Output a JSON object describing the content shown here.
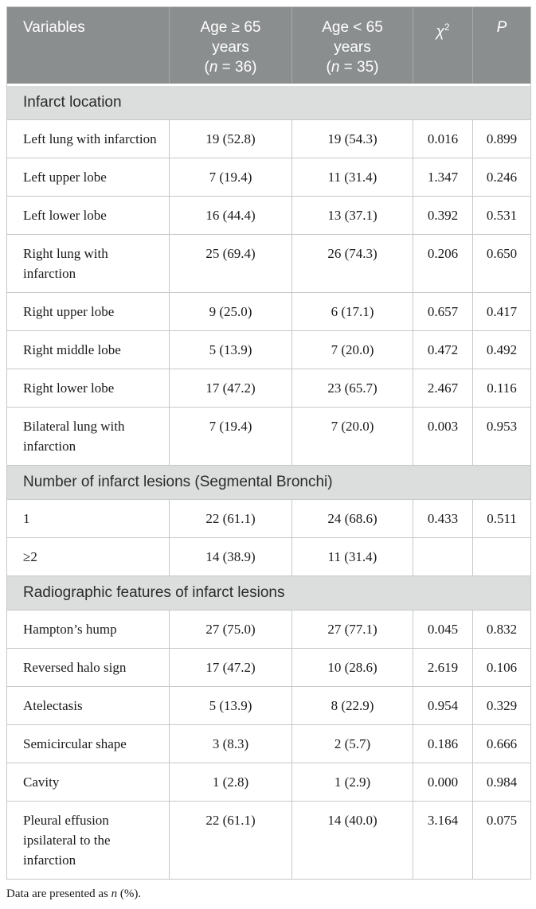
{
  "table": {
    "colors": {
      "header_bg": "#8b8e8f",
      "header_text": "#ffffff",
      "header_separator": "#a6a9aa",
      "section_bg": "#dcdddd",
      "border": "#c6c8c9",
      "body_text": "#1a1a1a"
    },
    "header": {
      "variables": "Variables",
      "group1_lines": [
        "Age ≥ 65",
        "years",
        "(*n* = 36)"
      ],
      "group2_lines": [
        "Age < 65",
        "years",
        "(*n* = 35)"
      ],
      "chi_square": "*χ*^2^",
      "p": "*P*"
    },
    "rows": [
      {
        "type": "section",
        "label": "Infarct location"
      },
      {
        "type": "data",
        "variable": "Left lung with infarction",
        "age_ge_65": "19 (52.8)",
        "age_lt_65": "19 (54.3)",
        "chi_square": "0.016",
        "p_value": "0.899"
      },
      {
        "type": "data",
        "variable": "Left upper lobe",
        "age_ge_65": "7 (19.4)",
        "age_lt_65": "11 (31.4)",
        "chi_square": "1.347",
        "p_value": "0.246"
      },
      {
        "type": "data",
        "variable": "Left lower lobe",
        "age_ge_65": "16 (44.4)",
        "age_lt_65": "13 (37.1)",
        "chi_square": "0.392",
        "p_value": "0.531"
      },
      {
        "type": "data",
        "variable": "Right lung with infarction",
        "age_ge_65": "25 (69.4)",
        "age_lt_65": "26 (74.3)",
        "chi_square": "0.206",
        "p_value": "0.650"
      },
      {
        "type": "data",
        "variable": "Right upper lobe",
        "age_ge_65": "9 (25.0)",
        "age_lt_65": "6 (17.1)",
        "chi_square": "0.657",
        "p_value": "0.417"
      },
      {
        "type": "data",
        "variable": "Right middle lobe",
        "age_ge_65": "5 (13.9)",
        "age_lt_65": "7 (20.0)",
        "chi_square": "0.472",
        "p_value": "0.492"
      },
      {
        "type": "data",
        "variable": "Right lower lobe",
        "age_ge_65": "17 (47.2)",
        "age_lt_65": "23 (65.7)",
        "chi_square": "2.467",
        "p_value": "0.116"
      },
      {
        "type": "data",
        "variable": "Bilateral lung with infarction",
        "age_ge_65": "7 (19.4)",
        "age_lt_65": "7 (20.0)",
        "chi_square": "0.003",
        "p_value": "0.953"
      },
      {
        "type": "section",
        "label": "Number of infarct lesions (Segmental Bronchi)"
      },
      {
        "type": "data",
        "variable": "1",
        "age_ge_65": "22 (61.1)",
        "age_lt_65": "24 (68.6)",
        "chi_square": "0.433",
        "p_value": "0.511"
      },
      {
        "type": "data",
        "variable": "≥2",
        "age_ge_65": "14 (38.9)",
        "age_lt_65": "11 (31.4)",
        "chi_square": "",
        "p_value": ""
      },
      {
        "type": "section",
        "label": "Radiographic features of infarct lesions"
      },
      {
        "type": "data",
        "variable": "Hampton’s hump",
        "age_ge_65": "27 (75.0)",
        "age_lt_65": "27 (77.1)",
        "chi_square": "0.045",
        "p_value": "0.832"
      },
      {
        "type": "data",
        "variable": "Reversed halo sign",
        "age_ge_65": "17 (47.2)",
        "age_lt_65": "10 (28.6)",
        "chi_square": "2.619",
        "p_value": "0.106"
      },
      {
        "type": "data",
        "variable": "Atelectasis",
        "age_ge_65": "5 (13.9)",
        "age_lt_65": "8 (22.9)",
        "chi_square": "0.954",
        "p_value": "0.329"
      },
      {
        "type": "data",
        "variable": "Semicircular shape",
        "age_ge_65": "3 (8.3)",
        "age_lt_65": "2 (5.7)",
        "chi_square": "0.186",
        "p_value": "0.666"
      },
      {
        "type": "data",
        "variable": "Cavity",
        "age_ge_65": "1 (2.8)",
        "age_lt_65": "1 (2.9)",
        "chi_square": "0.000",
        "p_value": "0.984"
      },
      {
        "type": "data",
        "variable": "Pleural effusion ipsilateral to the infarction",
        "age_ge_65": "22 (61.1)",
        "age_lt_65": "14 (40.0)",
        "chi_square": "3.164",
        "p_value": "0.075"
      }
    ],
    "footnote": "Data are presented as *n* (%)."
  }
}
